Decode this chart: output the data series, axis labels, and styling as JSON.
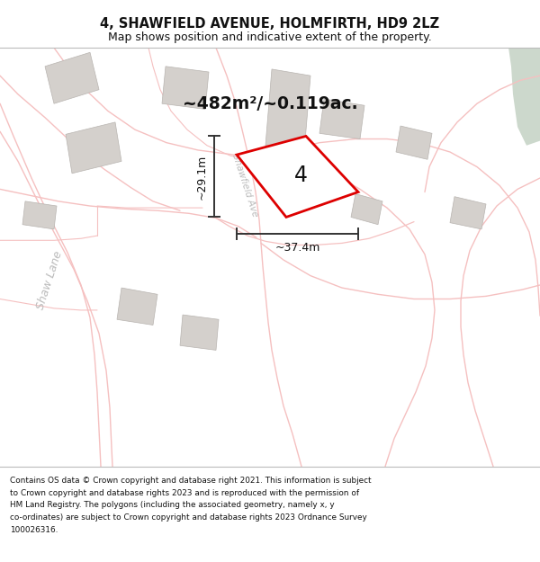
{
  "title": "4, SHAWFIELD AVENUE, HOLMFIRTH, HD9 2LZ",
  "subtitle": "Map shows position and indicative extent of the property.",
  "area_label": "~482m²/~0.119ac.",
  "property_number": "4",
  "dim_width": "~37.4m",
  "dim_height": "~29.1m",
  "street_label_1": "Shaw Lane",
  "street_label_2": "Shawfield Ave",
  "footer_lines": [
    "Contains OS data © Crown copyright and database right 2021. This information is subject",
    "to Crown copyright and database rights 2023 and is reproduced with the permission of",
    "HM Land Registry. The polygons (including the associated geometry, namely x, y",
    "co-ordinates) are subject to Crown copyright and database rights 2023 Ordnance Survey",
    "100026316."
  ],
  "map_bg": "#f2f0ed",
  "red_property": "#dd0000",
  "gray_building": "#d4d0cc",
  "road_color": "#f5c0c0",
  "road_outline": "#e8b0b0",
  "green_area": "#ccd8cc",
  "figsize": [
    6.0,
    6.25
  ],
  "dpi": 100
}
